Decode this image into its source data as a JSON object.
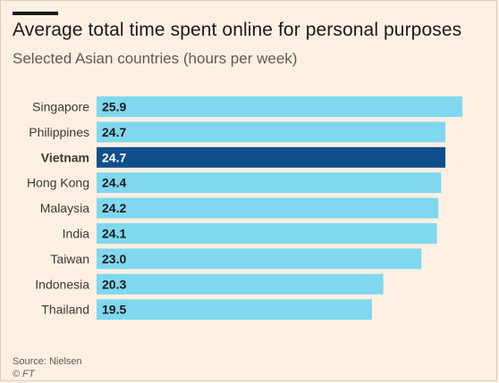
{
  "header": {
    "title": "Average total time spent online for personal purposes",
    "subtitle": "Selected Asian countries (hours per week)"
  },
  "footer": {
    "source": "Source: Nielsen",
    "credit": "© FT"
  },
  "colors": {
    "background": "#fdf0e3",
    "bar": "#7fd8ee",
    "highlight": "#0f4f8c",
    "highlight_text": "#ffffff",
    "label_text": "#1a1a1a",
    "axis_text": "#3d3833"
  },
  "chart_data": {
    "type": "bar",
    "orientation": "horizontal",
    "categories": [
      "Singapore",
      "Philippines",
      "Vietnam",
      "Hong Kong",
      "Malaysia",
      "India",
      "Taiwan",
      "Indonesia",
      "Thailand"
    ],
    "values": [
      25.9,
      24.7,
      24.7,
      24.4,
      24.2,
      24.1,
      23.0,
      20.3,
      19.5
    ],
    "value_labels": [
      "25.9",
      "24.7",
      "24.7",
      "24.4",
      "24.2",
      "24.1",
      "23.0",
      "20.3",
      "19.5"
    ],
    "highlight": "Vietnam",
    "xlim": [
      0,
      25.9
    ],
    "grid": false,
    "legend": "none"
  }
}
